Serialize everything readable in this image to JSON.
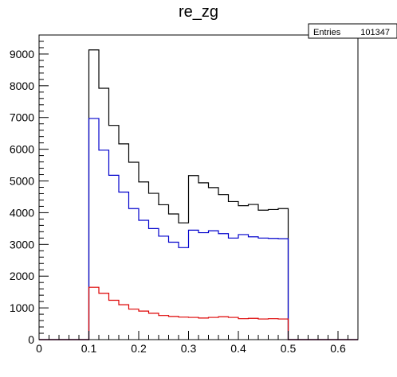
{
  "chart_data": {
    "type": "histogram",
    "title": "re_zg",
    "xlim": [
      0,
      0.64
    ],
    "ylim": [
      0,
      9600
    ],
    "x_ticks": [
      {
        "value": 0,
        "label": "0"
      },
      {
        "value": 0.1,
        "label": "0.1"
      },
      {
        "value": 0.2,
        "label": "0.2"
      },
      {
        "value": 0.3,
        "label": "0.3"
      },
      {
        "value": 0.4,
        "label": "0.4"
      },
      {
        "value": 0.5,
        "label": "0.5"
      },
      {
        "value": 0.6,
        "label": "0.6"
      }
    ],
    "y_ticks": [
      {
        "value": 0,
        "label": "0"
      },
      {
        "value": 1000,
        "label": "1000"
      },
      {
        "value": 2000,
        "label": "2000"
      },
      {
        "value": 3000,
        "label": "3000"
      },
      {
        "value": 4000,
        "label": "4000"
      },
      {
        "value": 5000,
        "label": "5000"
      },
      {
        "value": 6000,
        "label": "6000"
      },
      {
        "value": 7000,
        "label": "7000"
      },
      {
        "value": 8000,
        "label": "8000"
      },
      {
        "value": 9000,
        "label": "9000"
      }
    ],
    "bin_width": 0.02,
    "bins_low_edges": [
      0,
      0.02,
      0.04,
      0.06,
      0.08,
      0.1,
      0.12,
      0.14,
      0.16,
      0.18,
      0.2,
      0.22,
      0.24,
      0.26,
      0.28,
      0.3,
      0.32,
      0.34,
      0.36,
      0.38,
      0.4,
      0.42,
      0.44,
      0.46,
      0.48,
      0.5,
      0.52,
      0.54,
      0.56,
      0.58,
      0.6,
      0.62
    ],
    "series": [
      {
        "color": "#000000",
        "values": [
          0,
          0,
          0,
          0,
          0,
          9130,
          7920,
          6750,
          6170,
          5590,
          4970,
          4610,
          4250,
          3960,
          3680,
          5170,
          4940,
          4790,
          4570,
          4350,
          4220,
          4260,
          4080,
          4100,
          4130,
          0,
          0,
          0,
          0,
          0,
          0,
          0
        ]
      },
      {
        "color": "#0000cc",
        "values": [
          0,
          0,
          0,
          0,
          0,
          6970,
          5970,
          5180,
          4650,
          4130,
          3760,
          3500,
          3260,
          3070,
          2900,
          3450,
          3370,
          3430,
          3340,
          3200,
          3310,
          3240,
          3200,
          3190,
          3180,
          0,
          0,
          0,
          0,
          0,
          0,
          0
        ]
      },
      {
        "color": "#dd0000",
        "values": [
          0,
          0,
          0,
          0,
          0,
          1650,
          1460,
          1240,
          1100,
          960,
          900,
          830,
          760,
          730,
          710,
          700,
          680,
          700,
          720,
          700,
          660,
          670,
          650,
          660,
          650,
          0,
          0,
          0,
          0,
          0,
          0,
          0
        ]
      }
    ],
    "stats_box": {
      "label": "Entries",
      "value": "101347",
      "position": "top-right"
    },
    "grid": false
  }
}
